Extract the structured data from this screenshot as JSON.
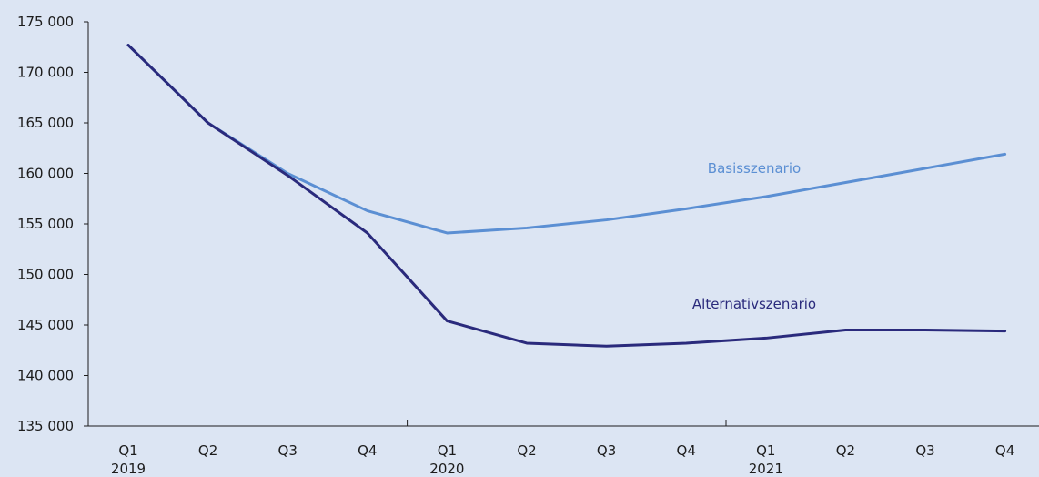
{
  "chart_data": {
    "type": "line",
    "title": "",
    "xlabel": "",
    "ylabel": "",
    "ylim": [
      135000,
      175000
    ],
    "y_ticks": [
      135000,
      140000,
      145000,
      150000,
      155000,
      160000,
      165000,
      170000,
      175000
    ],
    "y_tick_labels": [
      "135 000",
      "140 000",
      "145 000",
      "150 000",
      "155 000",
      "160 000",
      "165 000",
      "170 000",
      "175 000"
    ],
    "categories": [
      "Q1",
      "Q2",
      "Q3",
      "Q4",
      "Q1",
      "Q2",
      "Q3",
      "Q4",
      "Q1",
      "Q2",
      "Q3",
      "Q4"
    ],
    "years": [
      {
        "label": "2019",
        "at_index": 0
      },
      {
        "label": "2020",
        "at_index": 4
      },
      {
        "label": "2021",
        "at_index": 8
      }
    ],
    "grid": false,
    "series": [
      {
        "name": "Basisszenario",
        "color": "#5b8fd3",
        "values": [
          172700,
          165000,
          160000,
          156300,
          154100,
          154600,
          155400,
          156500,
          157700,
          159100,
          160500,
          161900
        ]
      },
      {
        "name": "Alternativszenario",
        "color": "#2a2a7c",
        "values": [
          172700,
          165000,
          159800,
          154100,
          145400,
          143200,
          142900,
          143200,
          143700,
          144500,
          144500,
          144400
        ]
      }
    ]
  }
}
